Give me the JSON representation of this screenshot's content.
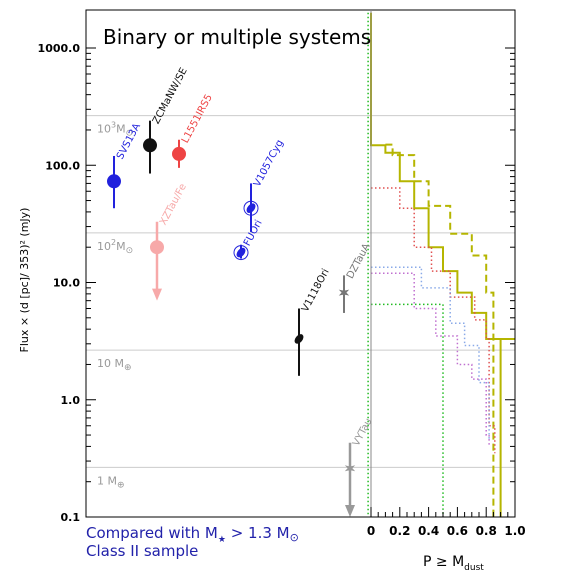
{
  "chart_data": {
    "type": "scatter",
    "title": "Binary or multiple systems",
    "ylabel": "Flux × (d [pc]/ 353)² (mJy)",
    "yscale": "log",
    "ylim": [
      0.1,
      2000
    ],
    "y_ticks": [
      {
        "value": 1000,
        "label": "1000.0"
      },
      {
        "value": 100,
        "label": "100.0"
      },
      {
        "value": 10,
        "label": "10.0"
      },
      {
        "value": 1,
        "label": "1.0"
      },
      {
        "value": 0.1,
        "label": "0.1"
      }
    ],
    "mass_lines": [
      {
        "value": 265,
        "base": "10",
        "exp": "3",
        "unit": "M",
        "sub": "⊙"
      },
      {
        "value": 26.5,
        "base": "10",
        "exp": "2",
        "unit": "M",
        "sub": "⊙"
      },
      {
        "value": 2.65,
        "base": "10 ",
        "exp": "",
        "unit": "M",
        "sub": "⊕"
      },
      {
        "value": 0.265,
        "base": "1 ",
        "exp": "",
        "unit": "M",
        "sub": "⊕"
      }
    ],
    "points": [
      {
        "name": "SVS13A",
        "color": "#2222dd",
        "flux": 73,
        "err_low": 43,
        "err_high": 120,
        "marker": "circle"
      },
      {
        "name": "ZCMaNW/SE",
        "color": "#111111",
        "flux": 148,
        "err_low": 85,
        "err_high": 240,
        "marker": "circle"
      },
      {
        "name": "L1551IRS5",
        "color": "#ee4444",
        "flux": 125,
        "err_low": 95,
        "err_high": 165,
        "marker": "circle"
      },
      {
        "name": "XZTau/Fe",
        "color": "#f7a9a9",
        "flux": 20,
        "upper_limit": true,
        "arrow_top": 33,
        "arrow_bottom": 7,
        "marker": "circle"
      },
      {
        "name": "V1057Cyg",
        "color": "#2222dd",
        "flux": 43,
        "err_low": 27,
        "err_high": 70,
        "marker": "ring-ellipse"
      },
      {
        "name": "FUOri",
        "color": "#2222dd",
        "flux": 18,
        "err_low": 16,
        "err_high": 21,
        "marker": "ring-ellipse"
      },
      {
        "name": "V1118Ori",
        "color": "#111111",
        "flux": 3.3,
        "err_low": 1.6,
        "err_high": 6,
        "marker": "ellipse"
      },
      {
        "name": "DZTauA",
        "color": "#777777",
        "flux": 8.2,
        "err_low": 5.5,
        "err_high": 11.5,
        "marker": "star"
      },
      {
        "name": "VYTau",
        "color": "#999999",
        "flux": 0.26,
        "upper_limit": true,
        "arrow_top": 0.43,
        "arrow_bottom": 0.1,
        "marker": "star"
      }
    ],
    "x2_label": "P ≥ M",
    "x2_label_sub": "dust",
    "x2_ticks": [
      "0",
      "0.2",
      "0.4",
      "0.6",
      "0.8",
      "1.0"
    ],
    "x2_range": [
      0,
      1
    ],
    "cdf_series": [
      {
        "name": "olive-solid",
        "color": "#b5b500",
        "style": "solid",
        "width": 2,
        "steps": [
          [
            0,
            2000
          ],
          [
            0,
            148
          ],
          [
            0.1,
            148
          ],
          [
            0.1,
            128
          ],
          [
            0.2,
            128
          ],
          [
            0.2,
            73
          ],
          [
            0.3,
            73
          ],
          [
            0.3,
            43
          ],
          [
            0.4,
            43
          ],
          [
            0.4,
            20
          ],
          [
            0.5,
            20
          ],
          [
            0.5,
            12.5
          ],
          [
            0.6,
            12.5
          ],
          [
            0.6,
            8.2
          ],
          [
            0.7,
            8.2
          ],
          [
            0.7,
            5.5
          ],
          [
            0.8,
            5.5
          ],
          [
            0.8,
            3.3
          ],
          [
            0.9,
            3.3
          ],
          [
            0.9,
            0.1
          ]
        ],
        "tail": [
          [
            0.9,
            3.3
          ],
          [
            1.0,
            3.3
          ]
        ]
      },
      {
        "name": "olive-dashed",
        "color": "#b5b500",
        "style": "dashed",
        "width": 2,
        "steps": [
          [
            0.1,
            150
          ],
          [
            0.15,
            150
          ],
          [
            0.15,
            122
          ],
          [
            0.3,
            122
          ],
          [
            0.3,
            73
          ],
          [
            0.4,
            73
          ],
          [
            0.4,
            45
          ],
          [
            0.55,
            45
          ],
          [
            0.55,
            26
          ],
          [
            0.7,
            26
          ],
          [
            0.7,
            17
          ],
          [
            0.8,
            17
          ],
          [
            0.8,
            8.2
          ],
          [
            0.85,
            8.2
          ],
          [
            0.85,
            0.1
          ]
        ]
      },
      {
        "name": "red-dotted",
        "color": "#e05050",
        "style": "dotted",
        "width": 1.5,
        "steps": [
          [
            0,
            64
          ],
          [
            0.2,
            64
          ],
          [
            0.2,
            43
          ],
          [
            0.3,
            43
          ],
          [
            0.3,
            20
          ],
          [
            0.42,
            20
          ],
          [
            0.42,
            12.5
          ],
          [
            0.55,
            12.5
          ],
          [
            0.55,
            7.5
          ],
          [
            0.72,
            7.5
          ],
          [
            0.72,
            4.8
          ],
          [
            0.8,
            4.8
          ],
          [
            0.8,
            3.3
          ],
          [
            0.82,
            3.3
          ],
          [
            0.82,
            0.6
          ],
          [
            0.86,
            0.6
          ],
          [
            0.86,
            0.35
          ]
        ]
      },
      {
        "name": "blue-dotted",
        "color": "#8aaae8",
        "style": "dotted",
        "width": 1.5,
        "steps": [
          [
            0,
            13.5
          ],
          [
            0.35,
            13.5
          ],
          [
            0.35,
            9
          ],
          [
            0.55,
            9
          ],
          [
            0.55,
            4.5
          ],
          [
            0.65,
            4.5
          ],
          [
            0.65,
            2.9
          ],
          [
            0.75,
            2.9
          ],
          [
            0.75,
            1.4
          ],
          [
            0.82,
            1.4
          ],
          [
            0.82,
            0.45
          ]
        ]
      },
      {
        "name": "purple-dotted",
        "color": "#c070d0",
        "style": "dotted",
        "width": 1.5,
        "steps": [
          [
            0,
            12
          ],
          [
            0.3,
            12
          ],
          [
            0.3,
            6
          ],
          [
            0.45,
            6
          ],
          [
            0.45,
            3.5
          ],
          [
            0.6,
            3.5
          ],
          [
            0.6,
            2
          ],
          [
            0.7,
            2
          ],
          [
            0.7,
            1.5
          ],
          [
            0.8,
            1.5
          ],
          [
            0.8,
            0.5
          ],
          [
            0.82,
            0.5
          ],
          [
            0.82,
            0.4
          ]
        ]
      },
      {
        "name": "green-dotted",
        "color": "#22bb22",
        "style": "dotted",
        "width": 1.5,
        "steps": [
          [
            0,
            6.5
          ],
          [
            0.5,
            6.5
          ],
          [
            0.5,
            0.1
          ]
        ],
        "extra": [
          [
            [
              -0.02,
              2000
            ],
            [
              -0.02,
              0.1
            ]
          ]
        ]
      }
    ],
    "footer_line1": "Compared with M",
    "footer_line1_sub": "★",
    "footer_line1_rest": " > 1.3 M",
    "footer_line1_end": "⊙",
    "footer_line2": "Class II sample",
    "colors": {
      "grid": "#cccccc",
      "axis": "#000000",
      "footer": "#2222aa"
    }
  }
}
